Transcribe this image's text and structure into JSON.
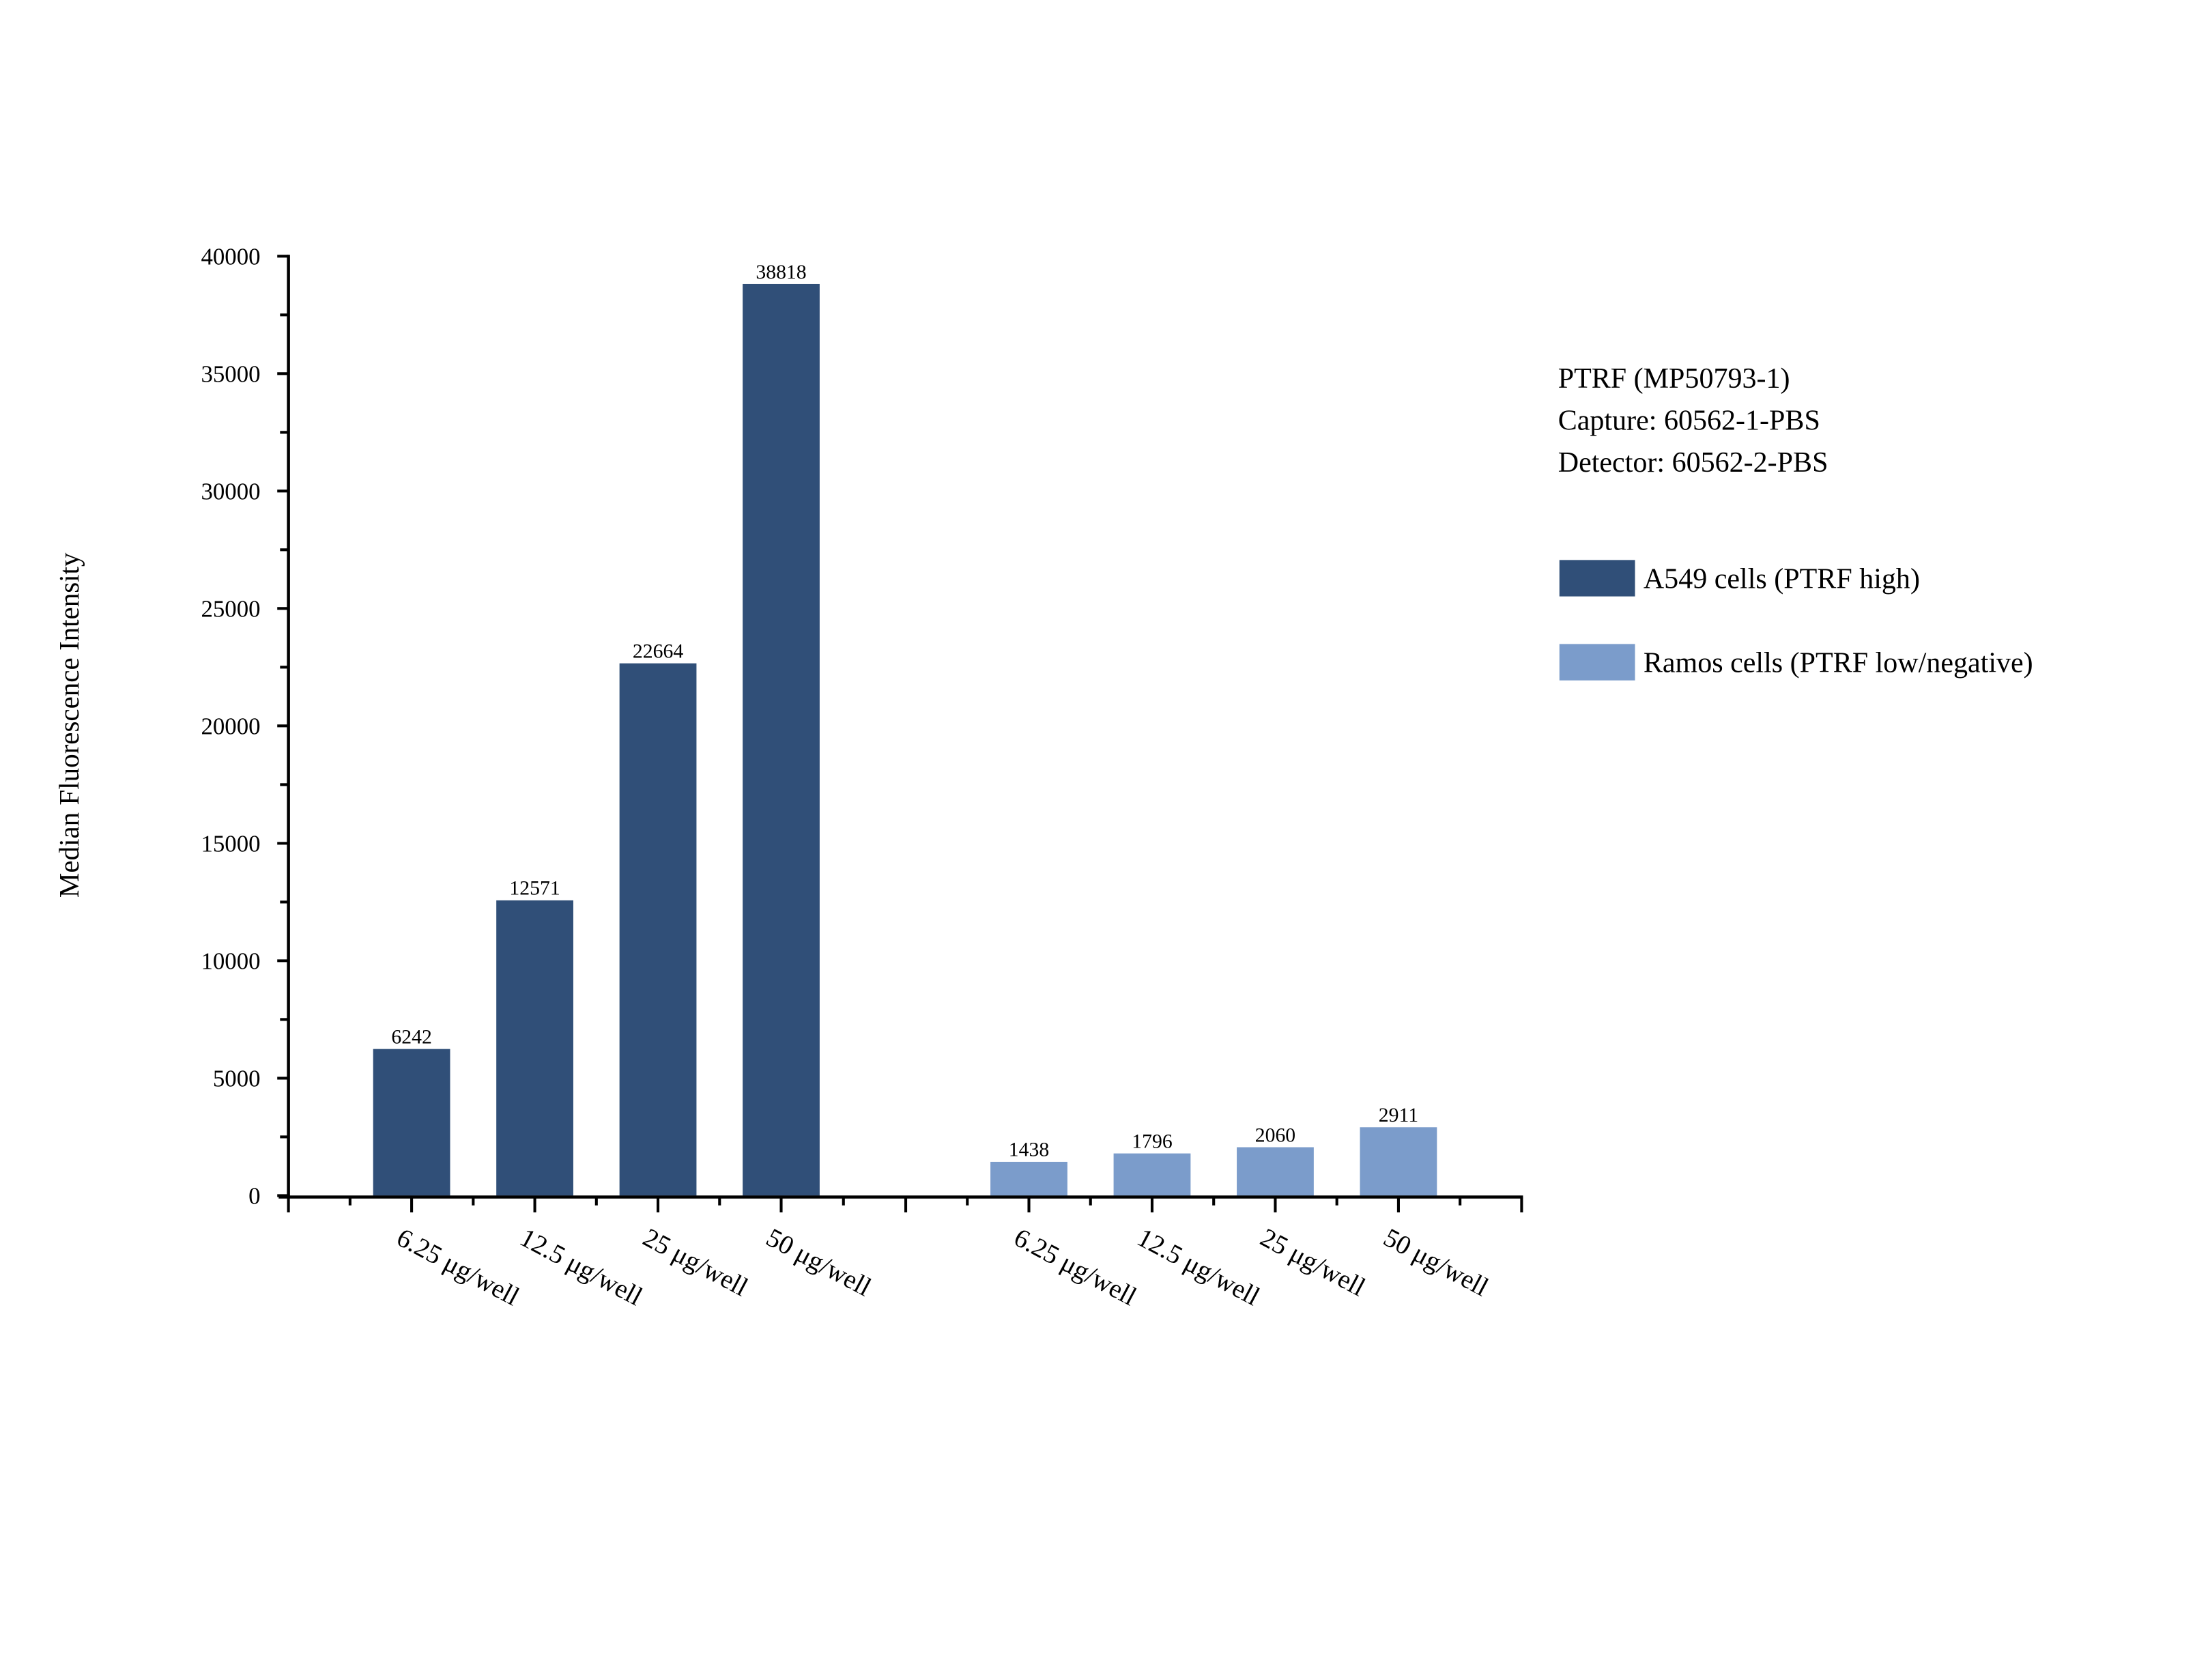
{
  "chart_data": {
    "type": "bar",
    "title": "",
    "xlabel": "",
    "ylabel": "Median Fluorescence Intensity",
    "ylim": [
      0,
      40000
    ],
    "yticks": [
      0,
      5000,
      10000,
      15000,
      20000,
      25000,
      30000,
      35000,
      40000
    ],
    "ytick_labels": [
      "0",
      "5000",
      "10000",
      "15000",
      "20000",
      "25000",
      "30000",
      "35000",
      "40000"
    ],
    "grid": false,
    "legend_position": "right",
    "categories": [
      "6.25 μg/well",
      "12.5 μg/well",
      "25 μg/well",
      "50 μg/well",
      "6.25 μg/well",
      "12.5 μg/well",
      "25 μg/well",
      "50 μg/well"
    ],
    "series": [
      {
        "name": "A549 cells (PTRF high)",
        "color": "#304f78",
        "categories": [
          "6.25 μg/well",
          "12.5 μg/well",
          "25 μg/well",
          "50 μg/well"
        ],
        "values": [
          6242,
          12571,
          22664,
          38818
        ],
        "value_labels": [
          "6242",
          "12571",
          "22664",
          "38818"
        ]
      },
      {
        "name": "Ramos cells (PTRF low/negative)",
        "color": "#7b9ccb",
        "categories": [
          "6.25 μg/well",
          "12.5 μg/well",
          "25 μg/well",
          "50 μg/well"
        ],
        "values": [
          1438,
          1796,
          2060,
          2911
        ],
        "value_labels": [
          "1438",
          "1796",
          "2060",
          "2911"
        ]
      }
    ],
    "annotations": [
      "PTRF (MP50793-1)",
      "Capture: 60562-1-PBS",
      "Detector: 60562-2-PBS"
    ]
  },
  "info_box": {
    "line1": "PTRF (MP50793-1)",
    "line2": "Capture: 60562-1-PBS",
    "line3": "Detector: 60562-2-PBS"
  },
  "legend": {
    "items": [
      {
        "label": "A549 cells (PTRF high)",
        "color": "#304f78"
      },
      {
        "label": "Ramos cells (PTRF low/negative)",
        "color": "#7b9ccb"
      }
    ]
  }
}
